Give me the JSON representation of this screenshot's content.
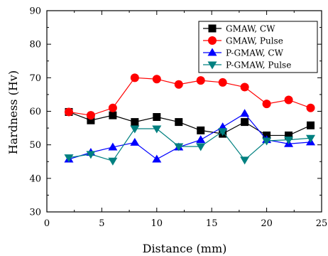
{
  "chart_data": {
    "type": "line",
    "title": "",
    "xlabel": "Distance (mm)",
    "ylabel": "Hardness (Hv)",
    "xlim": [
      0,
      25
    ],
    "ylim": [
      30,
      90
    ],
    "xticks": [
      0,
      5,
      10,
      15,
      20,
      25
    ],
    "yticks": [
      30,
      40,
      50,
      60,
      70,
      80,
      90
    ],
    "grid": false,
    "legend_position": "top-right",
    "x": [
      2,
      4,
      6,
      8,
      10,
      12,
      14,
      16,
      18,
      20,
      22,
      24
    ],
    "series": [
      {
        "name": "GMAW, CW",
        "color": "#000000",
        "marker": "square",
        "values": [
          59.8,
          57.3,
          58.8,
          56.8,
          58.3,
          56.8,
          54.3,
          53.3,
          56.8,
          52.8,
          52.8,
          55.8
        ]
      },
      {
        "name": "GMAW, Pulse",
        "color": "#ff0000",
        "marker": "circle",
        "values": [
          59.8,
          58.8,
          61.0,
          70.0,
          69.6,
          68.0,
          69.2,
          68.6,
          67.2,
          62.2,
          63.4,
          61.0
        ]
      },
      {
        "name": "P-GMAW, CW",
        "color": "#0000ff",
        "marker": "triangle-up",
        "values": [
          45.7,
          47.7,
          49.3,
          50.7,
          45.7,
          49.3,
          51.5,
          55.3,
          59.3,
          51.5,
          50.3,
          50.8
        ]
      },
      {
        "name": "P-GMAW, Pulse",
        "color": "#008080",
        "marker": "triangle-down",
        "values": [
          46.2,
          47.2,
          45.2,
          54.8,
          54.8,
          49.5,
          49.5,
          54.0,
          45.5,
          51.2,
          51.5,
          52.0
        ]
      }
    ]
  }
}
